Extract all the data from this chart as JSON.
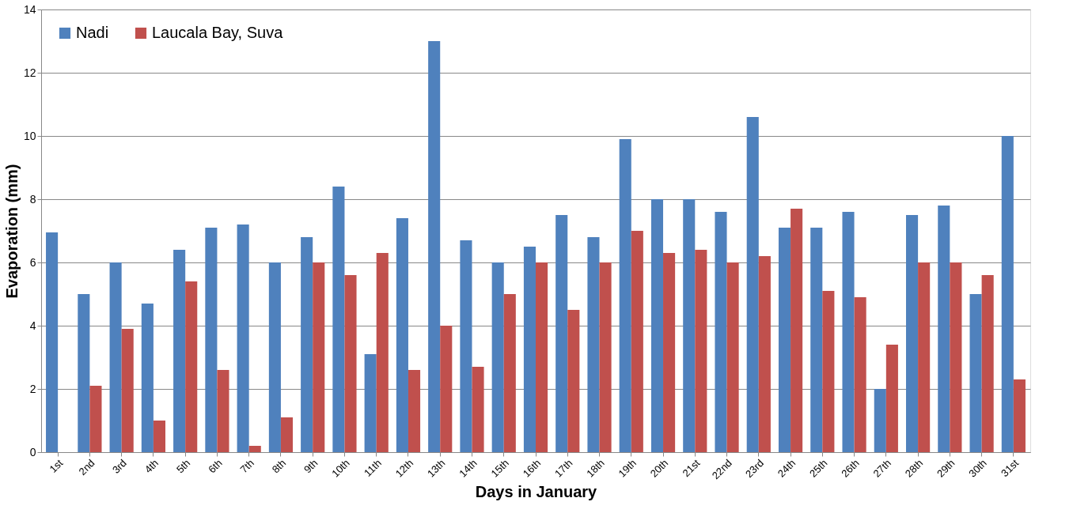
{
  "chart_data": {
    "type": "bar",
    "xlabel": "Days in January",
    "ylabel": "Evaporation (mm)",
    "categories": [
      "1st",
      "2nd",
      "3rd",
      "4th",
      "5th",
      "6th",
      "7th",
      "8th",
      "9th",
      "10th",
      "11th",
      "12th",
      "13th",
      "14th",
      "15th",
      "16th",
      "17th",
      "18th",
      "19th",
      "20th",
      "21st",
      "22nd",
      "23rd",
      "24th",
      "25th",
      "26th",
      "27th",
      "28th",
      "29th",
      "30th",
      "31st"
    ],
    "series": [
      {
        "name": "Nadi",
        "color": "#4f81bd",
        "values": [
          6.95,
          5.0,
          6.0,
          4.7,
          6.4,
          7.1,
          7.2,
          6.0,
          6.8,
          8.4,
          3.1,
          7.4,
          13.0,
          6.7,
          6.0,
          6.5,
          7.5,
          6.8,
          9.9,
          8.0,
          8.0,
          7.6,
          10.6,
          7.1,
          7.1,
          7.6,
          2.0,
          7.5,
          7.8,
          5.0,
          10.0
        ]
      },
      {
        "name": "Laucala Bay, Suva",
        "color": "#c0504d",
        "values": [
          null,
          2.1,
          3.9,
          1.0,
          5.4,
          2.6,
          0.2,
          1.1,
          6.0,
          5.6,
          6.3,
          2.6,
          4.0,
          2.7,
          5.0,
          6.0,
          4.5,
          6.0,
          7.0,
          6.3,
          6.4,
          6.0,
          6.2,
          7.7,
          5.1,
          4.9,
          3.4,
          6.0,
          6.0,
          5.6,
          2.3
        ]
      }
    ],
    "ylim": [
      0,
      14
    ],
    "yticks": [
      0,
      2,
      4,
      6,
      8,
      10,
      12,
      14
    ],
    "grid": "y",
    "legend": "top left"
  }
}
